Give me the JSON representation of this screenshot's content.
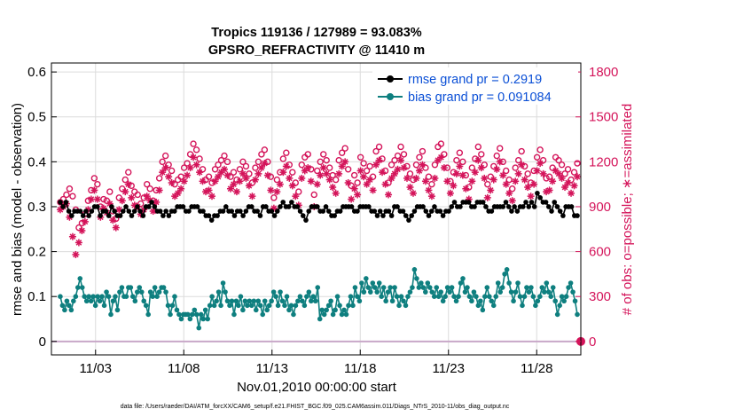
{
  "chart_data": {
    "type": "line",
    "title_lines": [
      "Tropics 119136 / 127989 = 93.083%",
      "GPSRO_REFRACTIVITY @ 11410 m"
    ],
    "xlabel": "Nov.01,2010 00:00:00 start",
    "ylabel_left": "rmse and bias (model - observation)",
    "ylabel_right": "# of obs: o=possible; ∗=assimilated",
    "xlim": [
      0.5,
      30.5
    ],
    "ylim_left": [
      -0.03,
      0.62
    ],
    "ylim_right": [
      -90,
      1860
    ],
    "x_ticks": [
      {
        "value": 3,
        "label": "11/03"
      },
      {
        "value": 8,
        "label": "11/08"
      },
      {
        "value": 13,
        "label": "11/13"
      },
      {
        "value": 18,
        "label": "11/18"
      },
      {
        "value": 23,
        "label": "11/23"
      },
      {
        "value": 28,
        "label": "11/28"
      }
    ],
    "y_ticks_left": [
      0,
      0.1,
      0.2,
      0.3,
      0.4,
      0.5,
      0.6
    ],
    "y_tick_labels_left": [
      "0",
      "0.1",
      "0.2",
      "0.3",
      "0.4",
      "0.5",
      "0.6"
    ],
    "y_ticks_right": [
      0,
      300,
      600,
      900,
      1200,
      1500,
      1800
    ],
    "y_tick_labels_right": [
      "0",
      "300",
      "600",
      "900",
      "1200",
      "1500",
      "1800"
    ],
    "series": [
      {
        "name": "rmse grand pr = 0.2919",
        "axis": "left",
        "color": "#000000",
        "values": [
          0.31,
          0.3,
          0.31,
          0.29,
          0.28,
          0.29,
          0.29,
          0.29,
          0.28,
          0.29,
          0.28,
          0.29,
          0.3,
          0.3,
          0.28,
          0.29,
          0.29,
          0.28,
          0.3,
          0.29,
          0.28,
          0.28,
          0.29,
          0.3,
          0.29,
          0.28,
          0.29,
          0.3,
          0.29,
          0.28,
          0.3,
          0.3,
          0.31,
          0.3,
          0.29,
          0.29,
          0.28,
          0.29,
          0.28,
          0.29,
          0.29,
          0.3,
          0.3,
          0.3,
          0.29,
          0.29,
          0.3,
          0.3,
          0.3,
          0.29,
          0.29,
          0.28,
          0.28,
          0.27,
          0.28,
          0.28,
          0.29,
          0.29,
          0.3,
          0.29,
          0.29,
          0.28,
          0.29,
          0.29,
          0.28,
          0.29,
          0.3,
          0.3,
          0.29,
          0.29,
          0.28,
          0.3,
          0.3,
          0.29,
          0.29,
          0.28,
          0.29,
          0.3,
          0.31,
          0.3,
          0.3,
          0.31,
          0.3,
          0.3,
          0.29,
          0.28,
          0.27,
          0.29,
          0.3,
          0.3,
          0.3,
          0.29,
          0.29,
          0.3,
          0.29,
          0.28,
          0.28,
          0.29,
          0.29,
          0.3,
          0.3,
          0.3,
          0.3,
          0.29,
          0.29,
          0.3,
          0.3,
          0.3,
          0.3,
          0.29,
          0.29,
          0.28,
          0.29,
          0.28,
          0.29,
          0.29,
          0.28,
          0.3,
          0.3,
          0.29,
          0.29,
          0.28,
          0.27,
          0.28,
          0.29,
          0.3,
          0.3,
          0.3,
          0.29,
          0.28,
          0.29,
          0.3,
          0.29,
          0.29,
          0.28,
          0.29,
          0.29,
          0.3,
          0.31,
          0.3,
          0.3,
          0.31,
          0.31,
          0.31,
          0.3,
          0.3,
          0.31,
          0.31,
          0.31,
          0.3,
          0.29,
          0.29,
          0.3,
          0.3,
          0.3,
          0.3,
          0.31,
          0.3,
          0.29,
          0.3,
          0.29,
          0.3,
          0.3,
          0.31,
          0.3,
          0.31,
          0.3,
          0.33,
          0.32,
          0.31,
          0.31,
          0.3,
          0.29,
          0.31,
          0.3,
          0.29,
          0.28,
          0.3,
          0.3,
          0.3,
          0.28,
          0.28
        ]
      },
      {
        "name": "bias grand pr = 0.091084",
        "axis": "left",
        "color": "#0e7f7f",
        "values": [
          0.1,
          0.08,
          0.07,
          0.09,
          0.08,
          0.07,
          0.09,
          0.1,
          0.12,
          0.14,
          0.12,
          0.1,
          0.09,
          0.1,
          0.09,
          0.1,
          0.08,
          0.1,
          0.09,
          0.1,
          0.08,
          0.11,
          0.1,
          0.06,
          0.09,
          0.1,
          0.07,
          0.11,
          0.12,
          0.1,
          0.1,
          0.12,
          0.12,
          0.1,
          0.09,
          0.11,
          0.12,
          0.11,
          0.09,
          0.08,
          0.06,
          0.11,
          0.1,
          0.12,
          0.1,
          0.11,
          0.12,
          0.12,
          0.11,
          0.08,
          0.06,
          0.08,
          0.1,
          0.07,
          0.06,
          0.05,
          0.06,
          0.06,
          0.06,
          0.05,
          0.06,
          0.07,
          0.06,
          0.03,
          0.06,
          0.05,
          0.07,
          0.05,
          0.08,
          0.1,
          0.08,
          0.09,
          0.11,
          0.08,
          0.13,
          0.11,
          0.09,
          0.08,
          0.09,
          0.06,
          0.09,
          0.08,
          0.1,
          0.07,
          0.09,
          0.08,
          0.09,
          0.08,
          0.09,
          0.07,
          0.09,
          0.08,
          0.06,
          0.09,
          0.07,
          0.08,
          0.09,
          0.11,
          0.1,
          0.08,
          0.11,
          0.09,
          0.08,
          0.1,
          0.07,
          0.08,
          0.06,
          0.08,
          0.09,
          0.1,
          0.09,
          0.08,
          0.1,
          0.11,
          0.09,
          0.1,
          0.09,
          0.12,
          0.05,
          0.07,
          0.06,
          0.07,
          0.08,
          0.09,
          0.06,
          0.07,
          0.1,
          0.08,
          0.06,
          0.07,
          0.06,
          0.08,
          0.1,
          0.08,
          0.12,
          0.1,
          0.09,
          0.13,
          0.11,
          0.14,
          0.12,
          0.11,
          0.13,
          0.12,
          0.11,
          0.13,
          0.1,
          0.12,
          0.09,
          0.11,
          0.12,
          0.09,
          0.12,
          0.1,
          0.08,
          0.1,
          0.09,
          0.08,
          0.1,
          0.11,
          0.12,
          0.16,
          0.14,
          0.12,
          0.13,
          0.12,
          0.11,
          0.13,
          0.12,
          0.11,
          0.1,
          0.12,
          0.1,
          0.11,
          0.09,
          0.1,
          0.12,
          0.11,
          0.12,
          0.1,
          0.09,
          0.1,
          0.13,
          0.14,
          0.11,
          0.12,
          0.1,
          0.09,
          0.11,
          0.1,
          0.08,
          0.09,
          0.07,
          0.1,
          0.12,
          0.1,
          0.09,
          0.08,
          0.1,
          0.13,
          0.11,
          0.12,
          0.15,
          0.16,
          0.13,
          0.11,
          0.09,
          0.11,
          0.13,
          0.1,
          0.08,
          0.1,
          0.12,
          0.11,
          0.12,
          0.1,
          0.08,
          0.09,
          0.1,
          0.12,
          0.11,
          0.13,
          0.11,
          0.1,
          0.12,
          0.09,
          0.06,
          0.08,
          0.1,
          0.09,
          0.1,
          0.12,
          0.13,
          0.11,
          0.09,
          0.06
        ]
      },
      {
        "name": "# possible obs (o)",
        "axis": "right",
        "marker": "circle",
        "color": "#d4145a",
        "values": [
          930,
          950,
          980,
          1020,
          970,
          880,
          760,
          790,
          850,
          940,
          1010,
          1090,
          1050,
          900,
          950,
          940,
          1000,
          870,
          820,
          960,
          1020,
          1080,
          1130,
          1040,
          1000,
          980,
          920,
          960,
          1050,
          1020,
          940,
          1010,
          1090,
          1200,
          1240,
          1180,
          1140,
          1050,
          1080,
          1100,
          1160,
          1190,
          1250,
          1320,
          1280,
          1220,
          1150,
          1080,
          1100,
          1060,
          1150,
          1180,
          1210,
          1240,
          1200,
          1100,
          1130,
          1080,
          1150,
          1200,
          1170,
          1120,
          1060,
          1160,
          1200,
          1250,
          1280,
          1200,
          1100,
          960,
          1080,
          1130,
          1220,
          1260,
          1180,
          1130,
          1060,
          1000,
          1180,
          1230,
          1250,
          1150,
          980,
          1140,
          1200,
          1250,
          1210,
          1160,
          1110,
          1080,
          1210,
          1260,
          1290,
          1150,
          1040,
          1110,
          1060,
          1230,
          1190,
          1140,
          1170,
          1100,
          1270,
          1300,
          1220,
          1140,
          1060,
          1180,
          1210,
          1240,
          1300,
          1250,
          1170,
          1120,
          1080,
          1180,
          1230,
          1270,
          1160,
          1100,
          1050,
          1180,
          1300,
          1320,
          1250,
          1160,
          1070,
          1130,
          1210,
          1260,
          1200,
          1110,
          1030,
          1160,
          1220,
          1300,
          1250,
          1180,
          1050,
          1100,
          1170,
          1240,
          1290,
          1200,
          1140,
          1080,
          1020,
          1160,
          1210,
          1270,
          1170,
          1120,
          1060,
          1140,
          1230,
          1280,
          1210,
          1090,
          1100,
          1160,
          1230,
          1210,
          1180,
          1120,
          1150,
          1080,
          1130,
          1190
        ]
      },
      {
        "name": "# assimilated obs (∗)",
        "axis": "right",
        "marker": "asterisk",
        "color": "#d4145a",
        "values": [
          880,
          900,
          920,
          830,
          700,
          580,
          660,
          740,
          800,
          880,
          950,
          1010,
          950,
          830,
          890,
          860,
          920,
          810,
          760,
          880,
          940,
          1000,
          1050,
          960,
          910,
          900,
          850,
          880,
          970,
          940,
          870,
          930,
          1010,
          1130,
          1160,
          1100,
          1060,
          970,
          990,
          1020,
          1070,
          1110,
          1160,
          1230,
          1180,
          1130,
          1070,
          1000,
          1010,
          970,
          1070,
          1100,
          1130,
          1150,
          1110,
          1020,
          1050,
          1000,
          1070,
          1120,
          1090,
          1040,
          970,
          1080,
          1120,
          1160,
          1190,
          1110,
          1010,
          890,
          1000,
          1050,
          1130,
          1170,
          1090,
          1040,
          970,
          910,
          1090,
          1140,
          1160,
          1070,
          900,
          1050,
          1110,
          1160,
          1120,
          1080,
          1030,
          990,
          1120,
          1170,
          1200,
          1060,
          950,
          1020,
          980,
          1140,
          1100,
          1050,
          1080,
          1010,
          1180,
          1210,
          1130,
          1050,
          980,
          1090,
          1120,
          1150,
          1210,
          1160,
          1090,
          1030,
          990,
          1090,
          1140,
          1180,
          1070,
          1010,
          970,
          1090,
          1210,
          1230,
          1160,
          1070,
          990,
          1040,
          1120,
          1170,
          1110,
          1020,
          950,
          1070,
          1130,
          1210,
          1160,
          1090,
          960,
          1010,
          1080,
          1150,
          1200,
          1110,
          1050,
          990,
          940,
          1070,
          1120,
          1180,
          1080,
          1030,
          970,
          1050,
          1140,
          1190,
          1120,
          1000,
          1010,
          1070,
          1140,
          1120,
          1090,
          1030,
          1060,
          990,
          1040,
          1100
        ]
      }
    ],
    "legend": [
      {
        "label": "rmse grand pr = 0.2919",
        "color": "#000000"
      },
      {
        "label": "bias grand pr = 0.091084",
        "color": "#0e7f7f"
      }
    ],
    "legend_position": "top-right",
    "zero_marker": {
      "x": 30.5,
      "value": 0,
      "axis": "right",
      "color": "#d4145a"
    }
  },
  "footnote": "data file: /Users/raeder/DAI/ATM_forcXX/CAM6_setup/f.e21.FHIST_BGC.f09_025.CAM6assim.011/Diags_NTrS_2010-11/obs_diag_output.nc",
  "colors": {
    "axis": "#000000",
    "grid": "#dcdcdc",
    "right_axis": "#d4145a",
    "zero_line": "#c8a8c8"
  }
}
